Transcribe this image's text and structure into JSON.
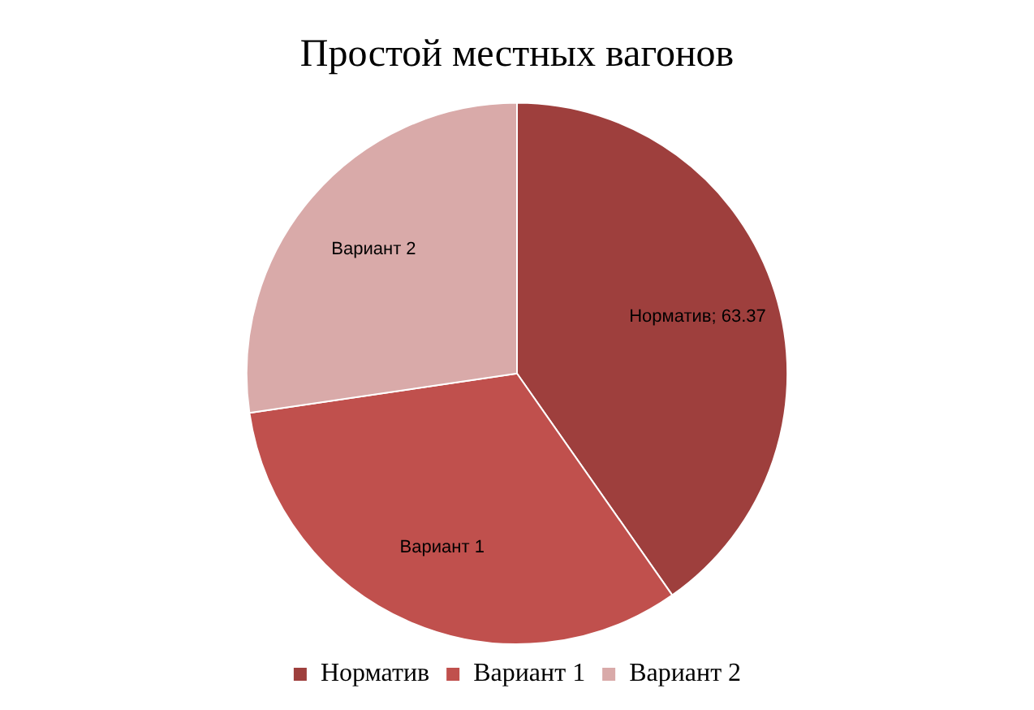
{
  "chart_data": {
    "type": "pie",
    "title": "Простой местных вагонов",
    "categories": [
      "Норматив",
      "Вариант 1",
      "Вариант 2"
    ],
    "values": [
      63.37,
      51,
      43
    ],
    "colors": [
      "#9e3f3d",
      "#c0504d",
      "#d9aaa9"
    ],
    "value_labels": [
      "Норматив; 63.37",
      "Вариант 1",
      "Вариант 2"
    ],
    "legend": "bottom"
  }
}
